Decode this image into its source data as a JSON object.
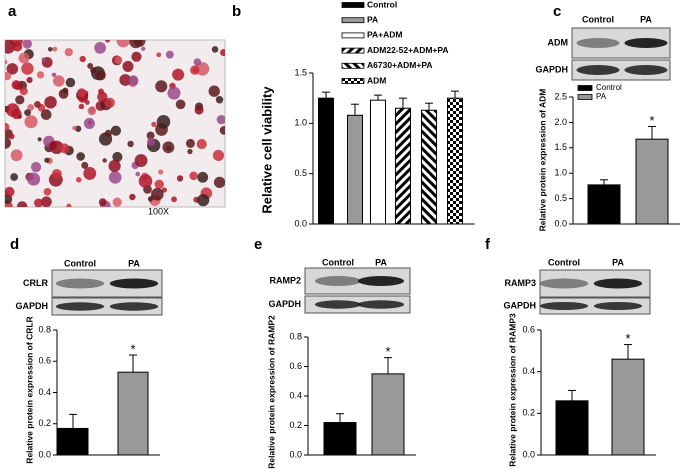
{
  "panels": [
    {
      "label": "a",
      "magnification": "100X"
    }
  ],
  "chart_data": [
    {
      "type": "bar",
      "panel": "b",
      "ylabel": "Relative cell viability",
      "ylim": [
        0,
        1.5
      ],
      "yticks": [
        {
          "value": 0,
          "label": "0.0"
        },
        0.5,
        {
          "value": 1,
          "label": "1.0"
        },
        1.5
      ],
      "legend": true,
      "series": [
        {
          "name": "Control",
          "color": "#000000",
          "fill": "solid",
          "values": [
            1.25
          ],
          "errors": [
            0.06
          ]
        },
        {
          "name": "PA",
          "color": "#999999",
          "fill": "solid",
          "values": [
            1.08
          ],
          "errors": [
            0.11
          ]
        },
        {
          "name": "PA+ADM",
          "color": "#ffffff",
          "fill": "solid",
          "values": [
            1.23
          ],
          "errors": [
            0.05
          ]
        },
        {
          "name": "ADM22-52+ADM+PA",
          "color": "#000000",
          "fill": "stripes",
          "values": [
            1.15
          ],
          "errors": [
            0.1
          ]
        },
        {
          "name": "A6730+ADM+PA",
          "color": "#000000",
          "fill": "stripes-reverse",
          "values": [
            1.13
          ],
          "errors": [
            0.07
          ]
        },
        {
          "name": "ADM",
          "color": "#000000",
          "fill": "checker",
          "values": [
            1.25
          ],
          "errors": [
            0.07
          ]
        }
      ]
    },
    {
      "type": "bar",
      "panel": "c",
      "ylabel": "Relative protein expression of ADM",
      "ylim": [
        0,
        2.5
      ],
      "yticks": [
        {
          "value": 0,
          "label": "0.0"
        },
        0.5,
        {
          "value": 1,
          "label": "1.0"
        },
        1.5,
        {
          "value": 2,
          "label": "2.0"
        },
        2.5
      ],
      "legend": true,
      "annotation": "*",
      "blot": {
        "columns": [
          "Control",
          "PA"
        ],
        "rows": [
          "ADM",
          "GAPDH"
        ]
      },
      "series": [
        {
          "name": "Control",
          "color": "#000000",
          "fill": "solid",
          "values": [
            0.77
          ],
          "errors": [
            0.1
          ]
        },
        {
          "name": "PA",
          "color": "#999999",
          "fill": "solid",
          "values": [
            1.67
          ],
          "errors": [
            0.25
          ]
        }
      ]
    },
    {
      "type": "bar",
      "panel": "d",
      "ylabel": "Relative protein expression of CRLR",
      "ylim": [
        0,
        0.8
      ],
      "yticks": [
        {
          "value": 0,
          "label": "0.0"
        },
        0.2,
        0.4,
        0.6,
        0.8
      ],
      "legend": false,
      "annotation": "*",
      "blot": {
        "columns": [
          "Control",
          "PA"
        ],
        "rows": [
          "CRLR",
          "GAPDH"
        ]
      },
      "values": [
        0.17,
        0.53
      ],
      "errors": [
        0.09,
        0.11
      ],
      "colors": [
        "#000000",
        "#999999"
      ]
    },
    {
      "type": "bar",
      "panel": "e",
      "ylabel": "Relative protein expression of RAMP2",
      "ylim": [
        0,
        0.8
      ],
      "yticks": [
        {
          "value": 0,
          "label": "0.0"
        },
        0.2,
        0.4,
        0.6,
        0.8
      ],
      "legend": false,
      "annotation": "*",
      "blot": {
        "columns": [
          "Control",
          "PA"
        ],
        "rows": [
          "RAMP2",
          "GAPDH"
        ]
      },
      "values": [
        0.22,
        0.55
      ],
      "errors": [
        0.06,
        0.11
      ],
      "colors": [
        "#000000",
        "#999999"
      ]
    },
    {
      "type": "bar",
      "panel": "f",
      "ylabel": "Relative protein expression of RAMP3",
      "ylim": [
        0,
        0.6
      ],
      "yticks": [
        {
          "value": 0,
          "label": "0.0"
        },
        0.2,
        0.4,
        0.6
      ],
      "legend": false,
      "annotation": "*",
      "blot": {
        "columns": [
          "Control",
          "PA"
        ],
        "rows": [
          "RAMP3",
          "GAPDH"
        ]
      },
      "values": [
        0.26,
        0.46
      ],
      "errors": [
        0.05,
        0.07
      ],
      "colors": [
        "#000000",
        "#999999"
      ]
    }
  ]
}
